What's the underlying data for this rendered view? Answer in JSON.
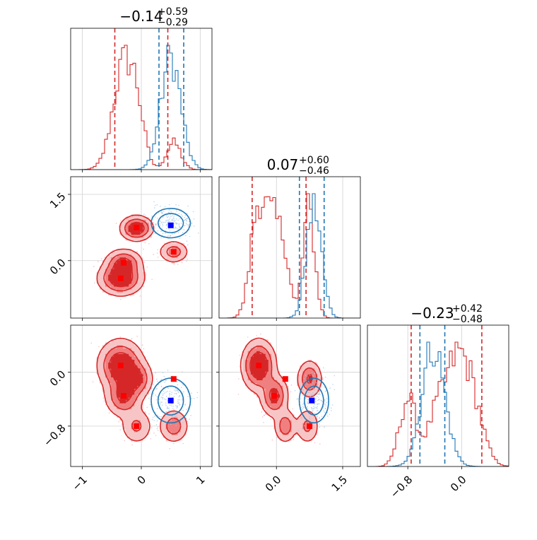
{
  "colors": {
    "red": "#d62728",
    "red_light": "#f08080",
    "red_pale": "#f7c5c5",
    "blue": "#1f77b4",
    "marker_blue": "#0000ff",
    "marker_red": "#ff0000",
    "grid": "#d0d0d0"
  },
  "chart_data": {
    "type": "corner",
    "grid": true,
    "parameters": [
      {
        "range": [
          -1.2,
          1.2
        ],
        "ticks": [
          -1,
          0,
          1
        ],
        "tick_labels": [
          "−1",
          "0",
          "1"
        ],
        "title": {
          "main": "−0.14",
          "sup": "+0.59",
          "sub": "−0.29"
        }
      },
      {
        "range": [
          -1.3,
          1.9
        ],
        "ticks": [
          0.0,
          1.5
        ],
        "tick_labels": [
          "0.0",
          "1.5"
        ],
        "title": {
          "main": "0.07",
          "sup": "+0.60",
          "sub": "−0.46"
        }
      },
      {
        "range": [
          -1.4,
          0.7
        ],
        "ticks": [
          -0.8,
          0.0
        ],
        "tick_labels": [
          "−0.8",
          "0.0"
        ],
        "title": {
          "main": "−0.23",
          "sup": "+0.42",
          "sub": "−0.48"
        }
      }
    ],
    "series": [
      {
        "name": "red",
        "color": "#d62728",
        "quantiles": [
          [
            -0.45,
            0.45
          ],
          [
            -0.55,
            0.67
          ],
          [
            -0.75,
            0.3
          ]
        ],
        "modes": [
          {
            "x": -0.35,
            "y": -0.4,
            "z": 0.1,
            "w": 0.32,
            "s": 0.18
          },
          {
            "x": -0.3,
            "y": -0.05,
            "z": -0.35,
            "w": 0.22,
            "s": 0.15
          },
          {
            "x": -0.08,
            "y": 0.75,
            "z": -0.1,
            "w": 0.2,
            "s": 0.13
          },
          {
            "x": 0.55,
            "y": 0.2,
            "z": -0.8,
            "w": 0.15,
            "s": 0.12
          },
          {
            "x": -0.08,
            "y": 0.7,
            "z": -0.8,
            "w": 0.11,
            "s": 0.13
          }
        ],
        "markers": [
          [
            -0.35,
            -0.4,
            0.1
          ],
          [
            -0.3,
            -0.05,
            -0.35
          ],
          [
            -0.08,
            0.75,
            -0.8
          ],
          [
            0.55,
            0.2,
            -0.1
          ]
        ]
      },
      {
        "name": "blue",
        "color": "#1f77b4",
        "quantiles": [
          [
            0.3,
            0.72
          ],
          [
            0.52,
            1.08
          ],
          [
            -0.62,
            -0.25
          ]
        ],
        "modes": [
          {
            "x": 0.5,
            "y": 0.85,
            "z": -0.42,
            "w": 1.0,
            "s": 0.17
          }
        ],
        "markers": [
          [
            0.5,
            0.8,
            -0.42
          ]
        ]
      }
    ]
  }
}
